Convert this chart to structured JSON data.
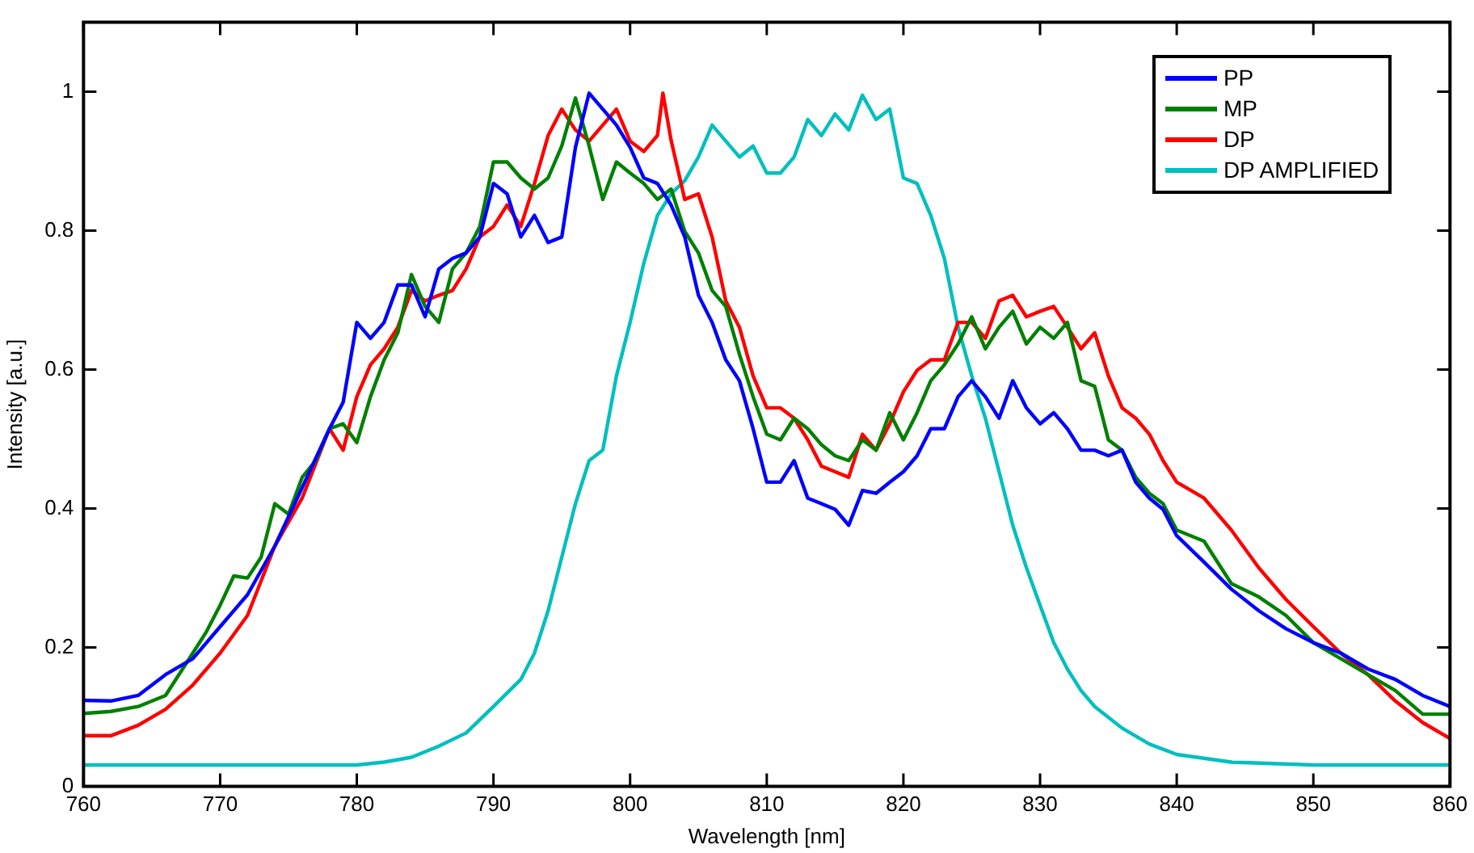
{
  "chart_data": {
    "type": "line",
    "xlabel": "Wavelength [nm]",
    "ylabel": "Intensity [a.u.]",
    "xlim": [
      760,
      860
    ],
    "ylim": [
      0,
      1.1
    ],
    "xticks": [
      760,
      770,
      780,
      790,
      800,
      810,
      820,
      830,
      840,
      850,
      860
    ],
    "yticks": [
      0,
      0.2,
      0.4,
      0.6,
      0.8,
      1
    ],
    "grid": false,
    "legend": "top right",
    "marker": "none",
    "series": [
      {
        "name": "PP",
        "color": "#0000ff",
        "x": [
          760,
          762,
          764,
          766,
          768,
          770,
          772,
          774,
          776,
          778,
          779,
          780,
          781,
          782,
          783,
          784,
          785,
          786,
          787,
          788,
          789,
          790,
          791,
          792,
          793,
          794,
          795,
          796,
          797,
          798,
          799,
          800,
          801,
          802,
          803,
          804,
          805,
          806,
          807,
          808,
          809,
          810,
          811,
          812,
          813,
          814,
          815,
          816,
          817,
          818,
          819,
          820,
          821,
          822,
          823,
          824,
          825,
          826,
          827,
          828,
          829,
          830,
          831,
          832,
          833,
          834,
          835,
          836,
          837,
          838,
          839,
          840,
          842,
          844,
          846,
          848,
          850,
          852,
          854,
          856,
          858,
          860
        ],
        "values": [
          0.124,
          0.123,
          0.131,
          0.161,
          0.184,
          0.23,
          0.276,
          0.346,
          0.43,
          0.515,
          0.553,
          0.668,
          0.645,
          0.668,
          0.722,
          0.722,
          0.676,
          0.745,
          0.76,
          0.768,
          0.791,
          0.868,
          0.853,
          0.791,
          0.822,
          0.783,
          0.791,
          0.92,
          0.998,
          0.975,
          0.952,
          0.92,
          0.876,
          0.868,
          0.837,
          0.791,
          0.707,
          0.668,
          0.614,
          0.584,
          0.515,
          0.438,
          0.438,
          0.469,
          0.415,
          0.407,
          0.399,
          0.376,
          0.426,
          0.422,
          0.438,
          0.453,
          0.476,
          0.515,
          0.515,
          0.561,
          0.584,
          0.561,
          0.53,
          0.584,
          0.545,
          0.522,
          0.538,
          0.515,
          0.484,
          0.484,
          0.476,
          0.484,
          0.438,
          0.415,
          0.399,
          0.361,
          0.323,
          0.284,
          0.253,
          0.227,
          0.207,
          0.192,
          0.169,
          0.154,
          0.131,
          0.115
        ]
      },
      {
        "name": "MP",
        "color": "#008000",
        "x": [
          760,
          762,
          764,
          766,
          768,
          769,
          770,
          771,
          772,
          773,
          774,
          775,
          776,
          777,
          778,
          779,
          780,
          781,
          782,
          783,
          784,
          785,
          786,
          787,
          788,
          789,
          790,
          791,
          792,
          793,
          794,
          795,
          796,
          797,
          798,
          799,
          800,
          801,
          802,
          803,
          804,
          805,
          806,
          807,
          808,
          809,
          810,
          811,
          812,
          813,
          814,
          815,
          816,
          817,
          818,
          819,
          820,
          821,
          822,
          823,
          824,
          825,
          826,
          827,
          828,
          829,
          830,
          831,
          832,
          833,
          834,
          835,
          836,
          837,
          838,
          839,
          840,
          842,
          844,
          846,
          848,
          850,
          852,
          854,
          856,
          858,
          860
        ],
        "values": [
          0.105,
          0.108,
          0.115,
          0.131,
          0.192,
          0.223,
          0.261,
          0.303,
          0.3,
          0.33,
          0.407,
          0.392,
          0.445,
          0.469,
          0.515,
          0.522,
          0.495,
          0.561,
          0.614,
          0.653,
          0.737,
          0.691,
          0.668,
          0.745,
          0.768,
          0.806,
          0.899,
          0.899,
          0.876,
          0.86,
          0.876,
          0.922,
          0.991,
          0.922,
          0.845,
          0.899,
          0.883,
          0.868,
          0.845,
          0.86,
          0.799,
          0.768,
          0.714,
          0.691,
          0.622,
          0.561,
          0.507,
          0.499,
          0.53,
          0.515,
          0.492,
          0.476,
          0.469,
          0.499,
          0.484,
          0.538,
          0.499,
          0.538,
          0.584,
          0.607,
          0.637,
          0.676,
          0.63,
          0.661,
          0.684,
          0.637,
          0.661,
          0.645,
          0.668,
          0.584,
          0.576,
          0.499,
          0.484,
          0.445,
          0.422,
          0.407,
          0.369,
          0.353,
          0.292,
          0.273,
          0.246,
          0.207,
          0.184,
          0.161,
          0.138,
          0.104,
          0.104
        ]
      },
      {
        "name": "DP",
        "color": "#ff0000",
        "x": [
          760,
          762,
          764,
          766,
          768,
          770,
          772,
          774,
          776,
          778,
          779,
          780,
          781,
          782,
          783,
          784,
          785,
          786,
          787,
          788,
          789,
          790,
          791,
          792,
          793,
          794,
          795,
          796,
          797,
          798,
          799,
          800,
          801,
          802,
          802.4,
          803,
          804,
          805,
          806,
          807,
          808,
          809,
          810,
          811,
          812,
          813,
          814,
          815,
          816,
          817,
          818,
          819,
          820,
          821,
          822,
          823,
          824,
          825,
          826,
          827,
          828,
          829,
          830,
          831,
          832,
          833,
          834,
          835,
          836,
          837,
          838,
          839,
          840,
          842,
          844,
          846,
          848,
          850,
          852,
          854,
          856,
          858,
          860
        ],
        "values": [
          0.073,
          0.073,
          0.088,
          0.111,
          0.146,
          0.192,
          0.246,
          0.346,
          0.415,
          0.515,
          0.484,
          0.561,
          0.607,
          0.63,
          0.661,
          0.714,
          0.699,
          0.707,
          0.714,
          0.745,
          0.791,
          0.806,
          0.837,
          0.806,
          0.868,
          0.937,
          0.975,
          0.945,
          0.929,
          0.952,
          0.975,
          0.929,
          0.914,
          0.937,
          0.998,
          0.93,
          0.845,
          0.853,
          0.791,
          0.699,
          0.661,
          0.591,
          0.545,
          0.545,
          0.53,
          0.499,
          0.461,
          0.453,
          0.445,
          0.507,
          0.484,
          0.522,
          0.568,
          0.599,
          0.614,
          0.614,
          0.668,
          0.668,
          0.645,
          0.699,
          0.707,
          0.676,
          0.684,
          0.691,
          0.661,
          0.63,
          0.653,
          0.591,
          0.545,
          0.53,
          0.507,
          0.469,
          0.438,
          0.415,
          0.369,
          0.315,
          0.269,
          0.23,
          0.192,
          0.161,
          0.123,
          0.092,
          0.069
        ]
      },
      {
        "name": "DP AMPLIFIED",
        "color": "#00bfbf",
        "x": [
          760,
          770,
          780,
          782,
          784,
          786,
          788,
          790,
          792,
          793,
          794,
          795,
          796,
          797,
          798,
          799,
          800,
          801,
          802,
          803,
          804,
          805,
          806,
          807,
          808,
          809,
          810,
          811,
          812,
          813,
          814,
          815,
          816,
          817,
          818,
          819,
          820,
          821,
          822,
          823,
          824,
          825,
          826,
          827,
          828,
          829,
          830,
          831,
          832,
          833,
          834,
          836,
          838,
          840,
          844,
          850,
          860
        ],
        "values": [
          0.031,
          0.031,
          0.031,
          0.035,
          0.042,
          0.058,
          0.077,
          0.115,
          0.154,
          0.192,
          0.253,
          0.33,
          0.407,
          0.469,
          0.484,
          0.591,
          0.668,
          0.753,
          0.822,
          0.853,
          0.872,
          0.906,
          0.952,
          0.929,
          0.906,
          0.922,
          0.883,
          0.883,
          0.906,
          0.96,
          0.937,
          0.968,
          0.945,
          0.995,
          0.96,
          0.975,
          0.876,
          0.868,
          0.822,
          0.76,
          0.661,
          0.591,
          0.53,
          0.453,
          0.376,
          0.315,
          0.261,
          0.207,
          0.169,
          0.138,
          0.115,
          0.084,
          0.061,
          0.046,
          0.035,
          0.031,
          0.031
        ]
      }
    ]
  }
}
